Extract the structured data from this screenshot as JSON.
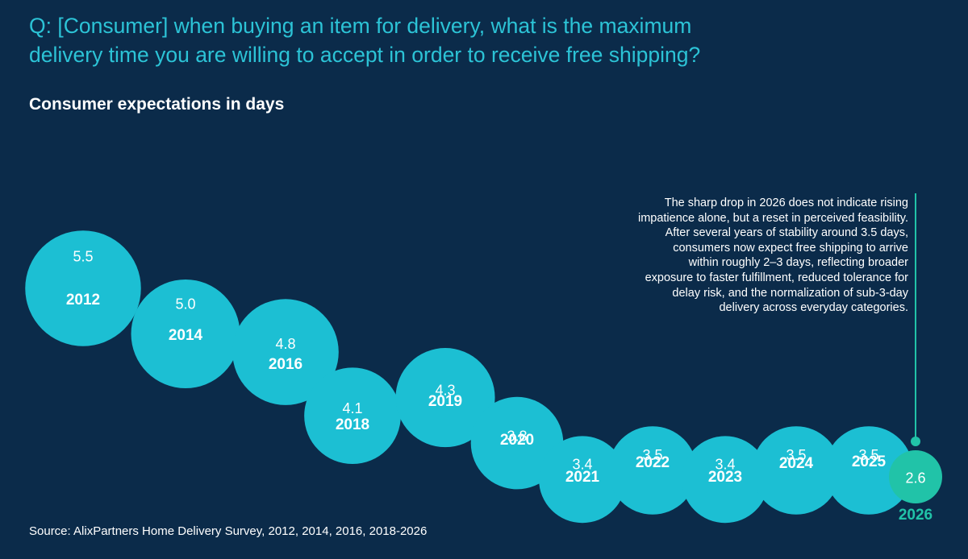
{
  "header": {
    "question_line1": "Q: [Consumer] when buying an item for delivery, what is the maximum",
    "question_line2": "delivery time you are willing to accept in order to receive free shipping?",
    "subtitle": "Consumer expectations in days"
  },
  "annotation": {
    "lines": [
      "The sharp drop in 2026 does not indicate rising",
      "impatience alone, but a reset in perceived feasibility.",
      "After several years of stability around 3.5 days,",
      "consumers now expect free shipping to arrive",
      "within roughly 2–3 days, reflecting broader",
      "exposure to faster fulfillment, reduced tolerance for",
      "delay risk, and the normalization of sub-3-day",
      "delivery across everyday categories."
    ]
  },
  "source": "Source: AlixPartners Home Delivery Survey, 2012, 2014, 2016, 2018-2026",
  "colors": {
    "background": "#0b2b4a",
    "bubble": "#1cbfd3",
    "highlight": "#21c3a8",
    "question_text": "#2cc3d6",
    "text": "#ffffff"
  },
  "chart_data": {
    "type": "scatter",
    "title": "Consumer expectations in days",
    "categories": [
      "2012",
      "2014",
      "2016",
      "2018",
      "2019",
      "2020",
      "2021",
      "2022",
      "2023",
      "2024",
      "2025",
      "2026"
    ],
    "series": [
      {
        "values": [
          5.5,
          5.0,
          4.8,
          4.1,
          4.3,
          3.8,
          3.4,
          3.5,
          3.4,
          3.5,
          3.5,
          2.6
        ],
        "labels": [
          "5.5",
          "5.0",
          "4.8",
          "4.1",
          "4.3",
          "3.8",
          "3.4",
          "3.5",
          "3.4",
          "3.5",
          "3.5",
          "2.6"
        ]
      }
    ],
    "highlight_category": "2026",
    "encoding": "bubble size and vertical position both reflect the value"
  }
}
